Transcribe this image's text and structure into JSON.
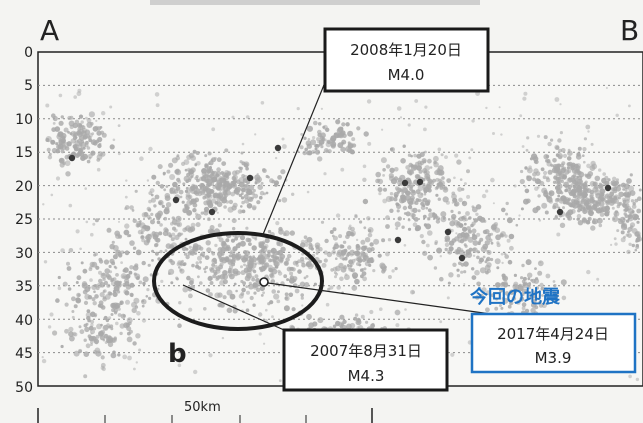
{
  "section": {
    "start_label": "A",
    "end_label": "B",
    "point_label": "b"
  },
  "depth_axis": {
    "ticks": [
      "0",
      "5",
      "10",
      "15",
      "20",
      "25",
      "30",
      "35",
      "40",
      "45",
      "50"
    ],
    "range": [
      0,
      50
    ]
  },
  "scale_bar": {
    "label": "50km"
  },
  "events": [
    {
      "date": "2008年1月20日",
      "magnitude": "M4.0"
    },
    {
      "date": "2007年8月31日",
      "magnitude": "M4.3"
    },
    {
      "date": "2017年4月24日",
      "magnitude": "M3.9",
      "caption": "今回の地震"
    }
  ],
  "colors": {
    "cluster": "#a9a9a9",
    "large_event": "#3a3a3a",
    "highlight": "#1f73c4",
    "frame": "#222222"
  }
}
